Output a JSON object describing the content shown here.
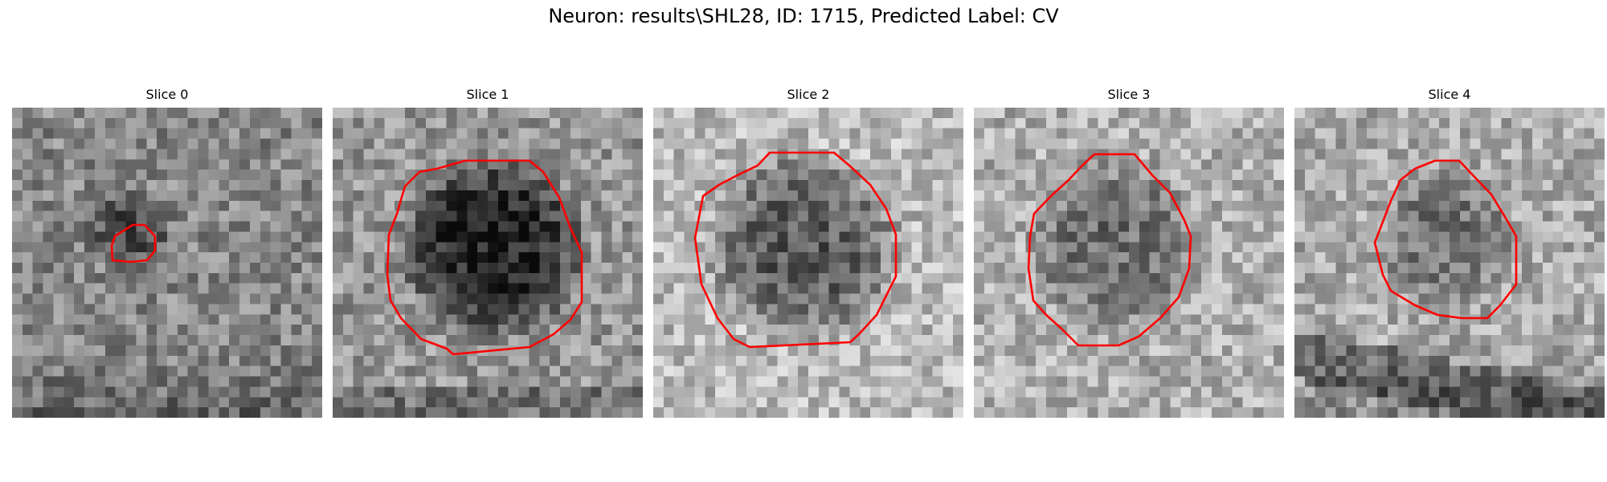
{
  "figure": {
    "title": "Neuron: results\\SHL28, ID: 1715, Predicted Label: CV"
  },
  "colors": {
    "contour": "#ff0000",
    "background": "#ffffff"
  },
  "grid_size": 30,
  "slices": [
    {
      "label": "Slice 0"
    },
    {
      "label": "Slice 1"
    },
    {
      "label": "Slice 2"
    },
    {
      "label": "Slice 3"
    },
    {
      "label": "Slice 4"
    }
  ]
}
